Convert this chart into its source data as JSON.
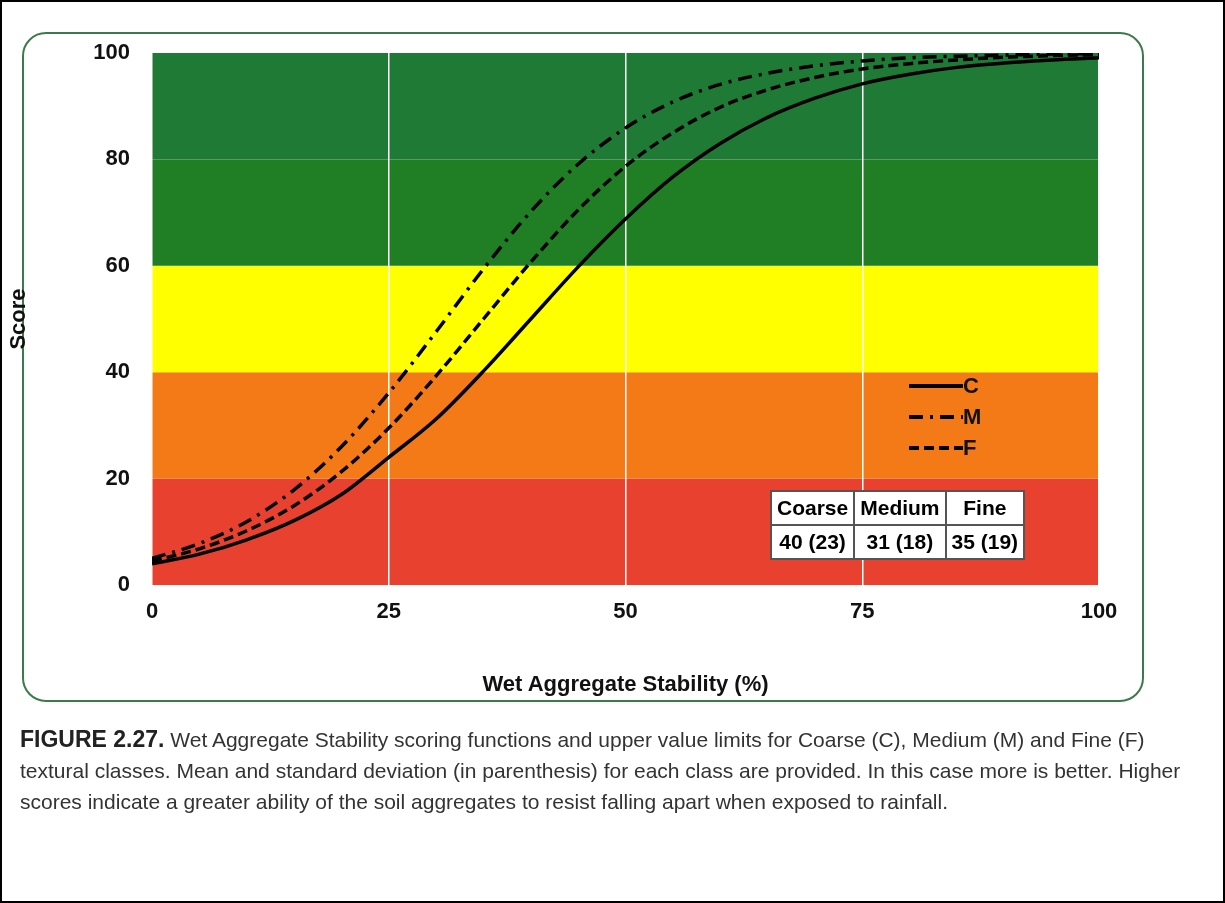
{
  "chart_data": {
    "type": "line",
    "xlabel": "Wet Aggregate Stability (%)",
    "ylabel": "Score",
    "x": [
      0,
      5,
      10,
      15,
      20,
      25,
      30,
      35,
      40,
      45,
      50,
      55,
      60,
      65,
      70,
      75,
      80,
      85,
      90,
      95,
      100
    ],
    "series": [
      {
        "name": "C",
        "color": "#000000",
        "line_style": "solid",
        "values": [
          4.0,
          5.8,
          8.5,
          12.1,
          17.0,
          24.0,
          31.2,
          40.2,
          50.0,
          59.8,
          68.8,
          76.7,
          83.0,
          87.9,
          91.5,
          94.2,
          96.0,
          97.3,
          98.1,
          98.7,
          99.1
        ]
      },
      {
        "name": "M",
        "color": "#000000",
        "line_style": "dashdot",
        "values": [
          5.0,
          7.8,
          11.9,
          17.9,
          26.0,
          36.1,
          47.6,
          59.4,
          70.2,
          79.1,
          85.9,
          90.8,
          94.1,
          96.2,
          97.6,
          98.5,
          99.1,
          99.4,
          99.6,
          99.8,
          99.9
        ]
      },
      {
        "name": "F",
        "color": "#000000",
        "line_style": "dashed",
        "values": [
          4.5,
          6.8,
          10.2,
          14.9,
          21.3,
          29.5,
          39.3,
          50.0,
          60.7,
          70.5,
          78.7,
          85.0,
          89.8,
          93.1,
          95.4,
          97.0,
          98.0,
          98.7,
          99.2,
          99.5,
          99.7
        ]
      }
    ],
    "xlim": [
      0,
      100
    ],
    "xticks": [
      0,
      25,
      50,
      75,
      100
    ],
    "ylim": [
      0,
      100
    ],
    "yticks": [
      0,
      20,
      40,
      60,
      80,
      100
    ],
    "grid": "x",
    "marker": "none",
    "legend": "bottom right",
    "bands": [
      {
        "axis": "y",
        "from": 0,
        "to": 20,
        "color": "#e8412f"
      },
      {
        "axis": "y",
        "from": 20,
        "to": 40,
        "color": "#f47a18"
      },
      {
        "axis": "y",
        "from": 40,
        "to": 60,
        "color": "#ffff00"
      },
      {
        "axis": "y",
        "from": 60,
        "to": 80,
        "color": "#207f24"
      },
      {
        "axis": "y",
        "from": 80,
        "to": 100,
        "color": "#1e7a34"
      }
    ],
    "annotations": [
      "Coarse",
      "Medium",
      "Fine",
      "40 (23)",
      "31 (18)",
      "35 (19)",
      "FIGURE 2.27.",
      "Wet Aggregate Stability scoring functions and upper value limits for Coarse (C), Medium (M) and Fine (F) textural classes. Mean and standard deviation (in parenthesis) for each class are provided.  In this case more is better.  Higher scores indicate a greater ability of the soil aggregates to resist falling apart when exposed to rainfall."
    ]
  }
}
